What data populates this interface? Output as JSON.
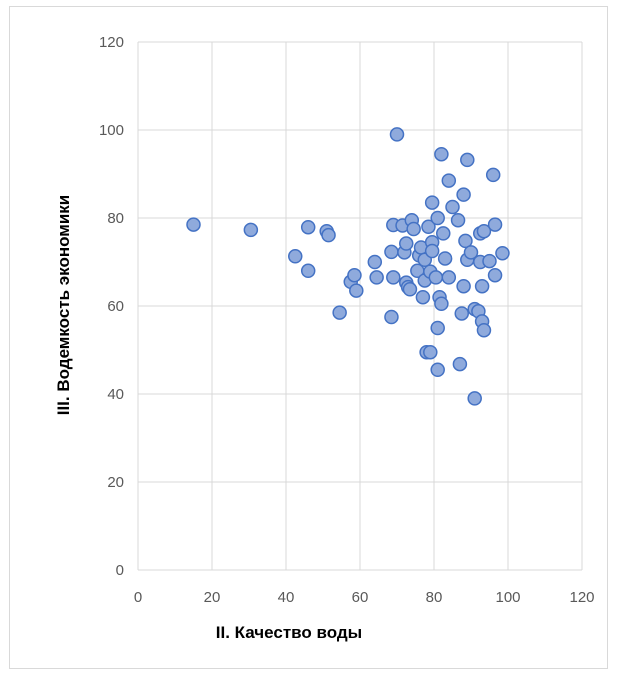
{
  "chart_data": {
    "type": "scatter",
    "title": "",
    "xlabel": "II. Качество воды",
    "ylabel": "III. Водемкость экономики",
    "xlim": [
      0,
      120
    ],
    "ylim": [
      0,
      120
    ],
    "x_ticks": [
      "0",
      "20",
      "40",
      "60",
      "80",
      "100",
      "120"
    ],
    "y_ticks": [
      "0",
      "20",
      "40",
      "60",
      "80",
      "100",
      "120"
    ],
    "grid": "vertical and horizontal major gridlines",
    "legend": "none",
    "marker_fill": "#8faadc",
    "marker_stroke": "#4472c4",
    "series": [
      {
        "points": [
          [
            15,
            78.5
          ],
          [
            30.5,
            77.3
          ],
          [
            42.5,
            71.3
          ],
          [
            46,
            68
          ],
          [
            46,
            77.9
          ],
          [
            51,
            77
          ],
          [
            51.5,
            76.1
          ],
          [
            54.5,
            58.5
          ],
          [
            57.5,
            65.5
          ],
          [
            58.5,
            67
          ],
          [
            59,
            63.5
          ],
          [
            64,
            70
          ],
          [
            64.5,
            66.5
          ],
          [
            68.5,
            57.5
          ],
          [
            68.5,
            72.3
          ],
          [
            69,
            66.5
          ],
          [
            69,
            78.4
          ],
          [
            70,
            99
          ],
          [
            71.5,
            78.3
          ],
          [
            72,
            72.2
          ],
          [
            72.5,
            65.3
          ],
          [
            72.5,
            74.2
          ],
          [
            73,
            64.3
          ],
          [
            73.5,
            63.8
          ],
          [
            74,
            79.5
          ],
          [
            74.5,
            77.5
          ],
          [
            75.5,
            68
          ],
          [
            76,
            71.5
          ],
          [
            76.5,
            73.3
          ],
          [
            77,
            62
          ],
          [
            77.5,
            70.5
          ],
          [
            77.5,
            65.8
          ],
          [
            78,
            49.5
          ],
          [
            78.5,
            78
          ],
          [
            79,
            49.5
          ],
          [
            79,
            67.8
          ],
          [
            79.5,
            74.5
          ],
          [
            79.5,
            72.5
          ],
          [
            79.5,
            83.5
          ],
          [
            80.5,
            66.5
          ],
          [
            81,
            55
          ],
          [
            81,
            80
          ],
          [
            81,
            45.5
          ],
          [
            81.5,
            62
          ],
          [
            82,
            60.5
          ],
          [
            82,
            94.5
          ],
          [
            82.5,
            76.5
          ],
          [
            83,
            70.8
          ],
          [
            84,
            88.5
          ],
          [
            84,
            66.5
          ],
          [
            85,
            82.5
          ],
          [
            86.5,
            79.5
          ],
          [
            87,
            46.8
          ],
          [
            87.5,
            58.3
          ],
          [
            88,
            85.3
          ],
          [
            88,
            64.5
          ],
          [
            88.5,
            74.8
          ],
          [
            89,
            93.2
          ],
          [
            89,
            70.5
          ],
          [
            90,
            72.2
          ],
          [
            91,
            59.3
          ],
          [
            91,
            39
          ],
          [
            92,
            58.8
          ],
          [
            92.5,
            76.5
          ],
          [
            92.5,
            70
          ],
          [
            93,
            56.5
          ],
          [
            93,
            64.5
          ],
          [
            93.5,
            54.5
          ],
          [
            93.5,
            77
          ],
          [
            95,
            70.2
          ],
          [
            96,
            89.8
          ],
          [
            96.5,
            78.5
          ],
          [
            96.5,
            67
          ],
          [
            98.5,
            72
          ]
        ]
      }
    ]
  }
}
